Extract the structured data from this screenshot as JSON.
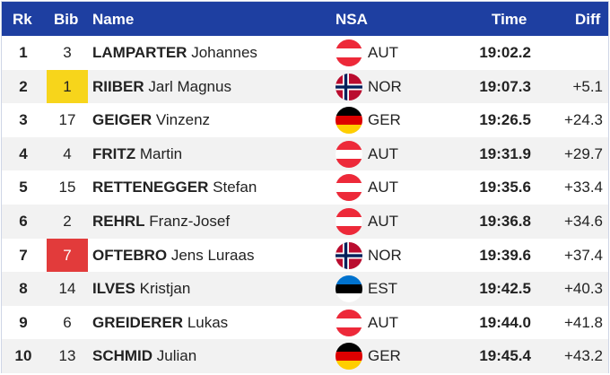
{
  "header": {
    "rk": "Rk",
    "bib": "Bib",
    "name": "Name",
    "nsa": "NSA",
    "time": "Time",
    "diff": "Diff"
  },
  "rows": [
    {
      "rk": "1",
      "bib": "3",
      "last": "LAMPARTER",
      "first": "Johannes",
      "nsa": "AUT",
      "time": "19:02.2",
      "diff": "",
      "bib_style": "",
      "flag": "aut-flag-icon"
    },
    {
      "rk": "2",
      "bib": "1",
      "last": "RIIBER",
      "first": "Jarl Magnus",
      "nsa": "NOR",
      "time": "19:07.3",
      "diff": "+5.1",
      "bib_style": "yellow",
      "flag": "nor-flag-icon"
    },
    {
      "rk": "3",
      "bib": "17",
      "last": "GEIGER",
      "first": "Vinzenz",
      "nsa": "GER",
      "time": "19:26.5",
      "diff": "+24.3",
      "bib_style": "",
      "flag": "ger-flag-icon"
    },
    {
      "rk": "4",
      "bib": "4",
      "last": "FRITZ",
      "first": "Martin",
      "nsa": "AUT",
      "time": "19:31.9",
      "diff": "+29.7",
      "bib_style": "",
      "flag": "aut-flag-icon"
    },
    {
      "rk": "5",
      "bib": "15",
      "last": "RETTENEGGER",
      "first": "Stefan",
      "nsa": "AUT",
      "time": "19:35.6",
      "diff": "+33.4",
      "bib_style": "",
      "flag": "aut-flag-icon"
    },
    {
      "rk": "6",
      "bib": "2",
      "last": "REHRL",
      "first": "Franz-Josef",
      "nsa": "AUT",
      "time": "19:36.8",
      "diff": "+34.6",
      "bib_style": "",
      "flag": "aut-flag-icon"
    },
    {
      "rk": "7",
      "bib": "7",
      "last": "OFTEBRO",
      "first": "Jens Luraas",
      "nsa": "NOR",
      "time": "19:39.6",
      "diff": "+37.4",
      "bib_style": "red",
      "flag": "nor-flag-icon"
    },
    {
      "rk": "8",
      "bib": "14",
      "last": "ILVES",
      "first": "Kristjan",
      "nsa": "EST",
      "time": "19:42.5",
      "diff": "+40.3",
      "bib_style": "",
      "flag": "est-flag-icon"
    },
    {
      "rk": "9",
      "bib": "6",
      "last": "GREIDERER",
      "first": "Lukas",
      "nsa": "AUT",
      "time": "19:44.0",
      "diff": "+41.8",
      "bib_style": "",
      "flag": "aut-flag-icon"
    },
    {
      "rk": "10",
      "bib": "13",
      "last": "SCHMID",
      "first": "Julian",
      "nsa": "GER",
      "time": "19:45.4",
      "diff": "+43.2",
      "bib_style": "",
      "flag": "ger-flag-icon"
    }
  ],
  "colors": {
    "header_bg": "#1e3fa1",
    "yellow_bib": "#f7d51b",
    "red_bib": "#e23b3b",
    "alt_row": "#f2f2f2"
  }
}
